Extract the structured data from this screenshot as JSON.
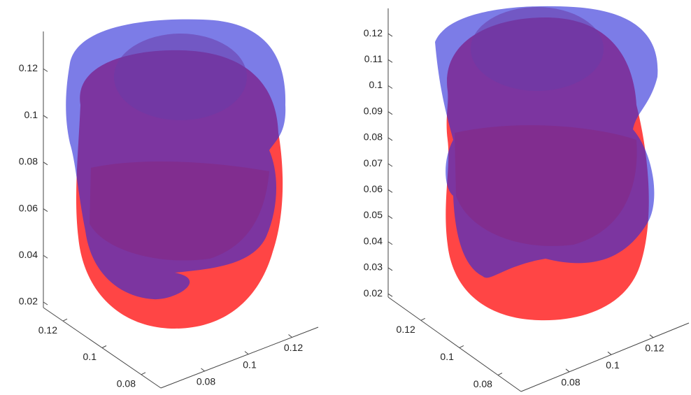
{
  "chart_data": [
    {
      "type": "surface3d",
      "xlim": [
        0.06,
        0.132
      ],
      "xticks": [
        0.08,
        0.1,
        0.12
      ],
      "ylim": [
        0.07,
        0.13
      ],
      "yticks": [
        0.08,
        0.1,
        0.12
      ],
      "zlim": [
        0.0176,
        0.136
      ],
      "zticks": [
        0.02,
        0.04,
        0.06,
        0.08,
        0.1,
        0.12
      ]
    },
    {
      "type": "surface3d",
      "xlim": [
        0.057,
        0.137
      ],
      "xticks": [
        0.08,
        0.1,
        0.12
      ],
      "ylim": [
        0.068,
        0.137
      ],
      "yticks": [
        0.08,
        0.1,
        0.12
      ],
      "zlim": [
        0.0187,
        0.1297
      ],
      "zticks": [
        0.02,
        0.03,
        0.04,
        0.05,
        0.06,
        0.07,
        0.08,
        0.09,
        0.1,
        0.11,
        0.12
      ]
    }
  ]
}
